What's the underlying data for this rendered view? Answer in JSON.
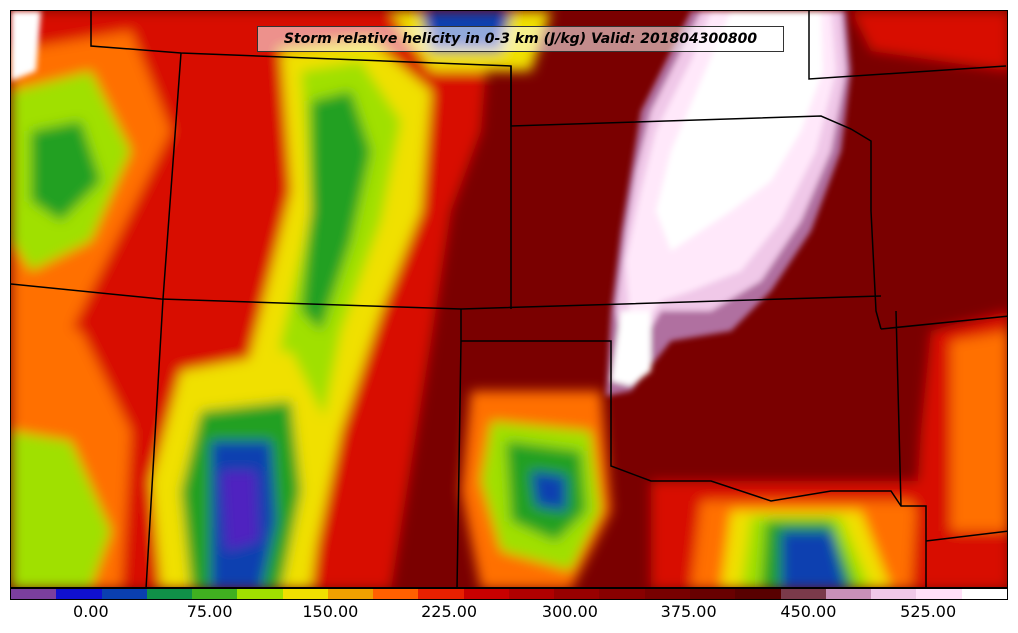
{
  "title": "Storm relative helicity in 0-3 km (J/kg) Valid: 201804300800",
  "colorbar": {
    "colors": [
      "#7b3f9e",
      "#1010d0",
      "#0a3fb0",
      "#109048",
      "#40b020",
      "#a0e000",
      "#f0e000",
      "#f0a000",
      "#ff6000",
      "#e82000",
      "#c80000",
      "#b00000",
      "#980000",
      "#880000",
      "#780000",
      "#680000",
      "#580000",
      "#7a3a4a",
      "#c890b8",
      "#f0c8e8",
      "#ffe0f8",
      "#ffffff"
    ],
    "ticks": [
      {
        "label": "0.00",
        "frac": 0.081
      },
      {
        "label": "75.00",
        "frac": 0.2
      },
      {
        "label": "150.00",
        "frac": 0.321
      },
      {
        "label": "225.00",
        "frac": 0.44
      },
      {
        "label": "300.00",
        "frac": 0.561
      },
      {
        "label": "375.00",
        "frac": 0.68
      },
      {
        "label": "450.00",
        "frac": 0.8
      },
      {
        "label": "525.00",
        "frac": 0.92
      }
    ]
  },
  "map_colors": {
    "dark": "#6a0000",
    "mid": "#a00000",
    "red": "#d81000",
    "orange": "#ff7000",
    "yellow": "#f0e000",
    "lime": "#a0e000",
    "green": "#20a020",
    "blue": "#0a3fb0",
    "violet": "#5020c0",
    "pink": "#f0c8e8",
    "light": "#ffe8fa",
    "white": "#ffffff",
    "mauve": "#b070a0"
  }
}
